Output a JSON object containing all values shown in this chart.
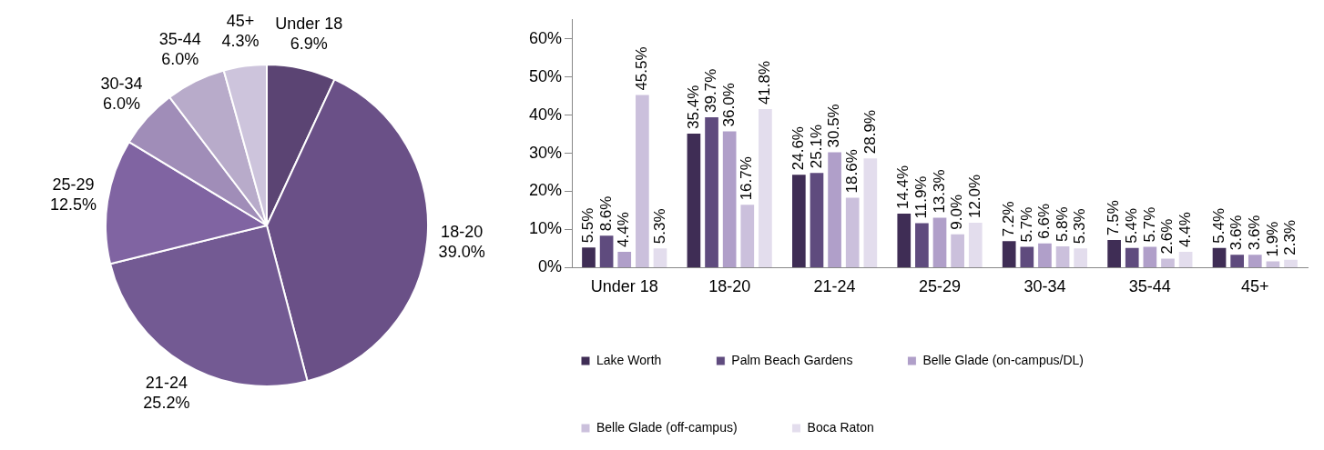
{
  "chart_data": [
    {
      "type": "pie",
      "categories": [
        "Under 18",
        "18-20",
        "21-24",
        "25-29",
        "30-34",
        "35-44",
        "45+"
      ],
      "values": [
        6.9,
        39.0,
        25.2,
        12.5,
        6.0,
        6.0,
        4.3
      ],
      "value_labels": [
        "6.9%",
        "39.0%",
        "25.2%",
        "12.5%",
        "6.0%",
        "6.0%",
        "4.3%"
      ],
      "colors": [
        "#5b4473",
        "#6a5087",
        "#735a93",
        "#8064a2",
        "#a08db8",
        "#b8abca",
        "#cdc4dc"
      ],
      "legend": false
    },
    {
      "type": "bar",
      "categories": [
        "Under 18",
        "18-20",
        "21-24",
        "25-29",
        "30-34",
        "35-44",
        "45+"
      ],
      "ylim": [
        0,
        65
      ],
      "yticks": [
        {
          "value": 0,
          "label": "0%"
        },
        {
          "value": 10,
          "label": "10%"
        },
        {
          "value": 20,
          "label": "20%"
        },
        {
          "value": 30,
          "label": "30%"
        },
        {
          "value": 40,
          "label": "40%"
        },
        {
          "value": 50,
          "label": "50%"
        },
        {
          "value": 60,
          "label": "60%"
        }
      ],
      "grid": false,
      "legend": "bottom",
      "series": [
        {
          "name": "Lake Worth",
          "color": "#3f2d55",
          "values": [
            5.5,
            35.4,
            24.6,
            14.4,
            7.2,
            7.5,
            5.4
          ],
          "value_labels": [
            "5.5%",
            "35.4%",
            "24.6%",
            "14.4%",
            "7.2%",
            "7.5%",
            "5.4%"
          ]
        },
        {
          "name": "Palm Beach Gardens",
          "color": "#5f4b7e",
          "values": [
            8.6,
            39.7,
            25.1,
            11.9,
            5.7,
            5.4,
            3.6
          ],
          "value_labels": [
            "8.6%",
            "39.7%",
            "25.1%",
            "11.9%",
            "5.7%",
            "5.4%",
            "3.6%"
          ]
        },
        {
          "name": "Belle Glade (on-campus/DL)",
          "color": "#b09fc9",
          "values": [
            4.4,
            36.0,
            30.5,
            13.3,
            6.6,
            5.7,
            3.6
          ],
          "value_labels": [
            "4.4%",
            "36.0%",
            "30.5%",
            "13.3%",
            "6.6%",
            "5.7%",
            "3.6%"
          ]
        },
        {
          "name": "Belle Glade (off-campus)",
          "color": "#cbc0dc",
          "values": [
            45.5,
            16.7,
            18.6,
            9.0,
            5.8,
            2.6,
            1.9
          ],
          "value_labels": [
            "45.5%",
            "16.7%",
            "18.6%",
            "9.0%",
            "5.8%",
            "2.6%",
            "1.9%"
          ]
        },
        {
          "name": "Boca Raton",
          "color": "#e3dded",
          "values": [
            5.3,
            41.8,
            28.9,
            12.0,
            5.3,
            4.4,
            2.3
          ],
          "value_labels": [
            "5.3%",
            "41.8%",
            "28.9%",
            "12.0%",
            "5.3%",
            "4.4%",
            "2.3%"
          ]
        }
      ]
    }
  ]
}
